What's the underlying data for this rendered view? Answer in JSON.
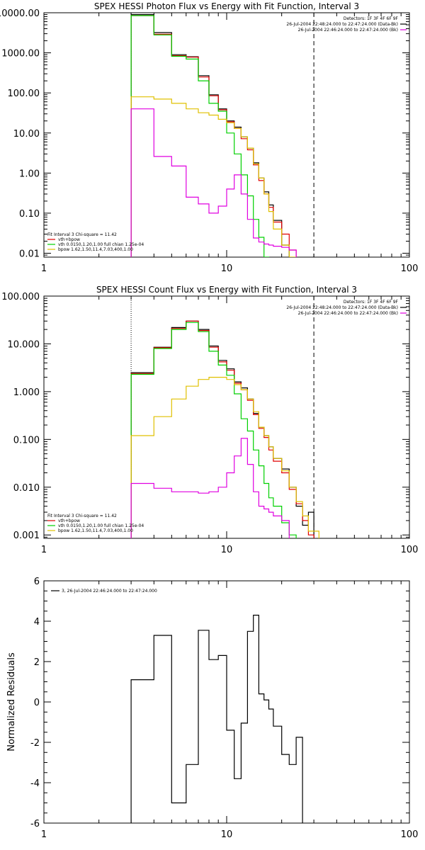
{
  "chart_data": [
    {
      "type": "line",
      "title": "SPEX HESSI Photon Flux vs Energy with Fit Function, Interval 3",
      "xscale": "log",
      "yscale": "log",
      "xlim": [
        1,
        100
      ],
      "ylim": [
        0.008,
        10000
      ],
      "xticks": [
        1,
        10,
        100
      ],
      "xtick_labels": [
        "1",
        "10",
        "100"
      ],
      "yticks": [
        0.01,
        0.1,
        1,
        10,
        100,
        1000,
        10000
      ],
      "ytick_labels": [
        "0.01",
        "0.10",
        "1.00",
        "10.00",
        "100.00",
        "1000.00",
        "10000.00"
      ],
      "edges": [
        3,
        4,
        5,
        6,
        7,
        8,
        9,
        10,
        11,
        12,
        13,
        14,
        15,
        16,
        17,
        18,
        20,
        22,
        24,
        26,
        28,
        30
      ],
      "vlines": [
        {
          "x": 3,
          "style": "dotted"
        },
        {
          "x": 30,
          "style": "dashed"
        }
      ],
      "series": [
        {
          "name": "",
          "color": "#000000",
          "values": [
            9000,
            3200,
            900,
            800,
            270,
            90,
            40,
            20,
            14,
            8,
            4.2,
            1.8,
            0.75,
            0.34,
            0.16,
            0.066,
            0.016,
            0.006,
            null,
            null,
            null
          ]
        },
        {
          "name": "",
          "color": "#e00000",
          "values": [
            8500,
            2900,
            850,
            780,
            250,
            85,
            38,
            19,
            13,
            7.2,
            3.8,
            1.6,
            0.65,
            0.3,
            0.14,
            0.06,
            0.03,
            0.012,
            0.005,
            null,
            null
          ]
        },
        {
          "name": "",
          "color": "#00d000",
          "values": [
            8500,
            2800,
            820,
            700,
            200,
            55,
            35,
            10,
            3,
            0.9,
            0.27,
            0.07,
            0.025,
            0.008,
            null,
            null,
            null,
            null,
            null,
            null,
            null
          ]
        },
        {
          "name": "",
          "color": "#e0c000",
          "values": [
            80,
            70,
            55,
            40,
            32,
            28,
            22,
            18,
            13,
            8,
            4.2,
            1.7,
            0.75,
            0.3,
            0.11,
            0.04,
            0.016,
            0.008,
            null,
            null,
            null
          ]
        },
        {
          "name": "",
          "color": "#e000e0",
          "values": [
            40,
            2.6,
            1.5,
            0.25,
            0.17,
            0.1,
            0.15,
            0.4,
            0.9,
            0.3,
            0.07,
            0.024,
            0.019,
            0.017,
            0.016,
            0.015,
            0.014,
            0.012,
            null,
            null,
            null
          ]
        }
      ],
      "legend_top": [
        "Detectors: 1F 3F 4F 6F 9F",
        "26-Jul-2004 22:48:24.000 to 22:47:24.000 (Data-Bk)",
        "26-Jul-2004 22:46:24.000 to 22:47:24.000 (Bk)"
      ],
      "legend_top_colors": [
        "#000000",
        "#e000e0"
      ],
      "legend_bottom_header": "Fit Interval 3   Chi-square = 11.42",
      "legend_bottom": [
        "vth+bpow",
        "vth 0.0150,1.20,1.00  full chian 1.25e-04",
        "bpow 1.62,1.50,11.4,7.03,400,1.00"
      ],
      "legend_bottom_colors": [
        "#e00000",
        "#00d000",
        "#e0c000"
      ]
    },
    {
      "type": "line",
      "title": "SPEX HESSI Count Flux vs Energy with Fit Function, Interval 3",
      "xscale": "log",
      "yscale": "log",
      "xlim": [
        1,
        100
      ],
      "ylim": [
        0.00085,
        100
      ],
      "xticks": [
        1,
        10,
        100
      ],
      "xtick_labels": [
        "1",
        "10",
        "100"
      ],
      "yticks": [
        0.001,
        0.01,
        0.1,
        1,
        10,
        100
      ],
      "ytick_labels": [
        "0.001",
        "0.010",
        "0.100",
        "1.000",
        "10.000",
        "100.000"
      ],
      "edges": [
        3,
        4,
        5,
        6,
        7,
        8,
        9,
        10,
        11,
        12,
        13,
        14,
        15,
        16,
        17,
        18,
        20,
        22,
        24,
        26,
        28,
        30,
        32
      ],
      "vlines": [
        {
          "x": 3,
          "style": "dotted"
        },
        {
          "x": 30,
          "style": "dashed"
        }
      ],
      "series": [
        {
          "name": "",
          "color": "#000000",
          "values": [
            2.5,
            8.5,
            22,
            30,
            20,
            9,
            4.5,
            3,
            1.6,
            1.2,
            0.7,
            0.35,
            0.18,
            0.12,
            0.07,
            0.04,
            0.024,
            0.01,
            0.004,
            0.0016,
            0.003,
            null
          ]
        },
        {
          "name": "",
          "color": "#e00000",
          "values": [
            2.4,
            8.3,
            21,
            30,
            19,
            8.5,
            4.2,
            2.8,
            1.5,
            1.1,
            0.66,
            0.33,
            0.17,
            0.11,
            0.06,
            0.035,
            0.02,
            0.009,
            0.0045,
            0.002,
            0.001,
            null
          ]
        },
        {
          "name": "",
          "color": "#00d000",
          "values": [
            2.3,
            8,
            20,
            28,
            18,
            7,
            3.6,
            2.2,
            0.9,
            0.27,
            0.15,
            0.06,
            0.028,
            0.012,
            0.006,
            0.004,
            0.0018,
            0.001,
            null,
            null,
            null,
            null
          ]
        },
        {
          "name": "",
          "color": "#e0c000",
          "values": [
            0.12,
            0.3,
            0.7,
            1.3,
            1.8,
            2.0,
            2.0,
            1.8,
            1.4,
            1.1,
            0.7,
            0.38,
            0.18,
            0.12,
            0.07,
            0.04,
            0.022,
            0.01,
            0.005,
            0.0025,
            0.0012,
            0.0012
          ]
        },
        {
          "name": "",
          "color": "#e000e0",
          "values": [
            0.012,
            0.0095,
            0.008,
            0.008,
            0.0075,
            0.008,
            0.01,
            0.02,
            0.045,
            0.105,
            0.03,
            0.008,
            0.004,
            0.0035,
            0.003,
            0.0025,
            0.002,
            null,
            null,
            null,
            null,
            null
          ]
        }
      ],
      "legend_top": [
        "Detectors: 1F 3F 4F 6F 9F",
        "26-Jul-2004 22:48:24.000 to 22:47:24.000 (Data-Bk)",
        "26-Jul-2004 22:46:24.000 to 22:47:24.000 (Bk)"
      ],
      "legend_top_colors": [
        "#000000",
        "#e000e0"
      ],
      "legend_bottom_header": "Fit Interval 3   Chi-square = 11.42",
      "legend_bottom": [
        "vth+bpow",
        "vth 0.0150,1.20,1.00  full chian 1.25e-04",
        "bpow 1.62,1.50,11.4,7.03,400,1.00"
      ],
      "legend_bottom_colors": [
        "#e00000",
        "#00d000",
        "#e0c000"
      ]
    },
    {
      "type": "line",
      "title": "",
      "ylabel": "Normalized Residuals",
      "xscale": "log",
      "yscale": "linear",
      "xlim": [
        1,
        100
      ],
      "ylim": [
        -6,
        6
      ],
      "xticks": [
        1,
        10,
        100
      ],
      "xtick_labels": [
        "1",
        "10",
        "100"
      ],
      "yticks": [
        -6,
        -4,
        -2,
        0,
        2,
        4,
        6
      ],
      "ytick_labels": [
        "-6",
        "-4",
        "-2",
        "0",
        "2",
        "4",
        "6"
      ],
      "edges": [
        3,
        4,
        5,
        6,
        7,
        8,
        9,
        10,
        11,
        12,
        13,
        14,
        15,
        16,
        17,
        18,
        20,
        22,
        24,
        26,
        28,
        30
      ],
      "vlines": [],
      "series": [
        {
          "name": "3, 26-Jul-2004 22:46:24.000 to 22:47:24.000",
          "color": "#000000",
          "values": [
            1.1,
            3.3,
            -5.0,
            -3.1,
            3.55,
            2.1,
            2.3,
            -1.4,
            -3.8,
            -1.05,
            3.5,
            4.3,
            0.4,
            0.1,
            -0.35,
            -1.2,
            -2.6,
            -3.1,
            -1.75,
            null,
            null
          ],
          "drop_to": -6
        }
      ],
      "legend_top": [],
      "legend_bottom_header": "",
      "legend_bottom": [],
      "legend_series": "3, 26-Jul-2004 22:46:24.000 to 22:47:24.000"
    }
  ]
}
